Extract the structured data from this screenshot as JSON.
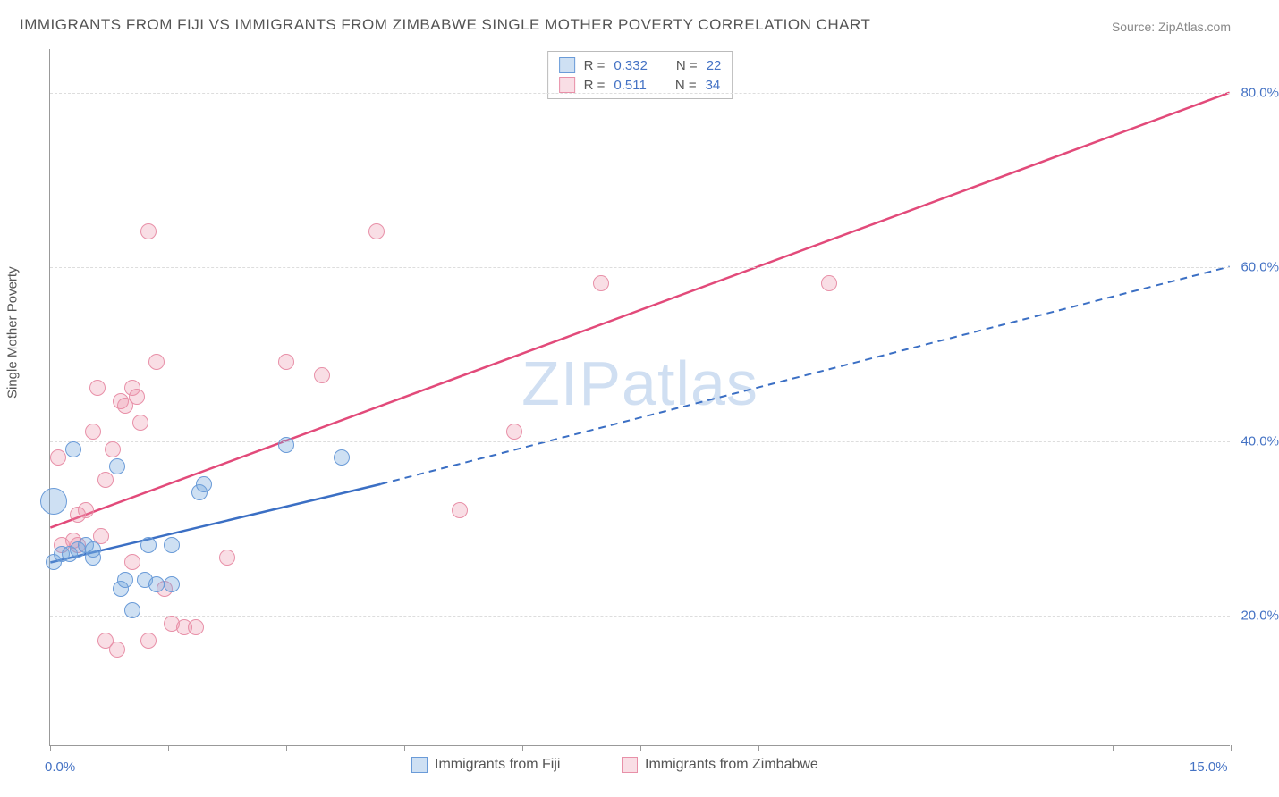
{
  "title": "IMMIGRANTS FROM FIJI VS IMMIGRANTS FROM ZIMBABWE SINGLE MOTHER POVERTY CORRELATION CHART",
  "source_prefix": "Source: ",
  "source_name": "ZipAtlas.com",
  "watermark_zip": "ZIP",
  "watermark_atlas": "atlas",
  "y_axis_title": "Single Mother Poverty",
  "chart": {
    "type": "scatter",
    "xlim": [
      0,
      15
    ],
    "ylim": [
      5,
      85
    ],
    "x_ticks": [
      0,
      15
    ],
    "x_tick_labels": [
      "0.0%",
      "15.0%"
    ],
    "x_minor_tick_step": 1.5,
    "y_ticks": [
      20,
      40,
      60,
      80
    ],
    "y_tick_labels": [
      "20.0%",
      "40.0%",
      "60.0%",
      "80.0%"
    ],
    "background_color": "#ffffff",
    "grid_color": "#dddddd",
    "series": [
      {
        "name": "Immigrants from Fiji",
        "color_fill": "rgba(115,165,220,0.35)",
        "color_stroke": "#6a9bd8",
        "line_color": "#3b6fc4",
        "marker_radius": 9,
        "R_label": "R =",
        "R": "0.332",
        "N_label": "N =",
        "N": "22",
        "regression": {
          "x1": 0,
          "y1": 26,
          "x2_solid": 4.2,
          "y2_solid": 35,
          "x2": 15,
          "y2": 60,
          "dash_after_solid": true
        },
        "points": [
          {
            "x": 0.05,
            "y": 33,
            "r": 15
          },
          {
            "x": 0.05,
            "y": 26,
            "r": 9
          },
          {
            "x": 0.15,
            "y": 27,
            "r": 9
          },
          {
            "x": 0.25,
            "y": 27,
            "r": 9
          },
          {
            "x": 0.35,
            "y": 27.5,
            "r": 9
          },
          {
            "x": 0.45,
            "y": 28,
            "r": 9
          },
          {
            "x": 0.55,
            "y": 26.5,
            "r": 9
          },
          {
            "x": 0.55,
            "y": 27.5,
            "r": 9
          },
          {
            "x": 0.3,
            "y": 39,
            "r": 9
          },
          {
            "x": 0.85,
            "y": 37,
            "r": 9
          },
          {
            "x": 0.9,
            "y": 23,
            "r": 9
          },
          {
            "x": 0.95,
            "y": 24,
            "r": 9
          },
          {
            "x": 1.05,
            "y": 20.5,
            "r": 9
          },
          {
            "x": 1.2,
            "y": 24,
            "r": 9
          },
          {
            "x": 1.25,
            "y": 28,
            "r": 9
          },
          {
            "x": 1.35,
            "y": 23.5,
            "r": 9
          },
          {
            "x": 1.55,
            "y": 28,
            "r": 9
          },
          {
            "x": 1.55,
            "y": 23.5,
            "r": 9
          },
          {
            "x": 1.9,
            "y": 34,
            "r": 9
          },
          {
            "x": 1.95,
            "y": 35,
            "r": 9
          },
          {
            "x": 3.0,
            "y": 39.5,
            "r": 9
          },
          {
            "x": 3.7,
            "y": 38,
            "r": 9
          }
        ]
      },
      {
        "name": "Immigrants from Zimbabwe",
        "color_fill": "rgba(235,145,170,0.30)",
        "color_stroke": "#e890a8",
        "line_color": "#e24a7a",
        "marker_radius": 9,
        "R_label": "R =",
        "R": "0.511",
        "N_label": "N =",
        "N": "34",
        "regression": {
          "x1": 0,
          "y1": 30,
          "x2_solid": 15,
          "y2_solid": 80,
          "x2": 15,
          "y2": 80,
          "dash_after_solid": false
        },
        "points": [
          {
            "x": 0.1,
            "y": 38,
            "r": 9
          },
          {
            "x": 0.15,
            "y": 28,
            "r": 9
          },
          {
            "x": 0.3,
            "y": 28.5,
            "r": 9
          },
          {
            "x": 0.35,
            "y": 28,
            "r": 9
          },
          {
            "x": 0.35,
            "y": 31.5,
            "r": 9
          },
          {
            "x": 0.45,
            "y": 32,
            "r": 9
          },
          {
            "x": 0.55,
            "y": 41,
            "r": 9
          },
          {
            "x": 0.6,
            "y": 46,
            "r": 9
          },
          {
            "x": 0.65,
            "y": 29,
            "r": 9
          },
          {
            "x": 0.7,
            "y": 35.5,
            "r": 9
          },
          {
            "x": 0.7,
            "y": 17,
            "r": 9
          },
          {
            "x": 0.8,
            "y": 39,
            "r": 9
          },
          {
            "x": 0.85,
            "y": 16,
            "r": 9
          },
          {
            "x": 0.9,
            "y": 44.5,
            "r": 9
          },
          {
            "x": 0.95,
            "y": 44,
            "r": 9
          },
          {
            "x": 1.05,
            "y": 46,
            "r": 9
          },
          {
            "x": 1.05,
            "y": 26,
            "r": 9
          },
          {
            "x": 1.1,
            "y": 45,
            "r": 9
          },
          {
            "x": 1.15,
            "y": 42,
            "r": 9
          },
          {
            "x": 1.25,
            "y": 64,
            "r": 9
          },
          {
            "x": 1.25,
            "y": 17,
            "r": 9
          },
          {
            "x": 1.35,
            "y": 49,
            "r": 9
          },
          {
            "x": 1.45,
            "y": 23,
            "r": 9
          },
          {
            "x": 1.55,
            "y": 19,
            "r": 9
          },
          {
            "x": 1.7,
            "y": 18.5,
            "r": 9
          },
          {
            "x": 1.85,
            "y": 18.5,
            "r": 9
          },
          {
            "x": 2.25,
            "y": 26.5,
            "r": 9
          },
          {
            "x": 3.0,
            "y": 49,
            "r": 9
          },
          {
            "x": 3.45,
            "y": 47.5,
            "r": 9
          },
          {
            "x": 4.15,
            "y": 64,
            "r": 9
          },
          {
            "x": 5.2,
            "y": 32,
            "r": 9
          },
          {
            "x": 5.9,
            "y": 41,
            "r": 9
          },
          {
            "x": 7.0,
            "y": 58,
            "r": 9
          },
          {
            "x": 9.9,
            "y": 58,
            "r": 9
          }
        ]
      }
    ]
  }
}
